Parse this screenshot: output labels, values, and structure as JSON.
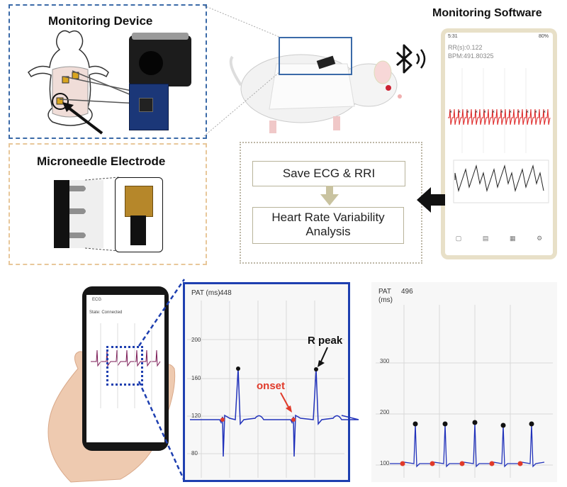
{
  "device_panel": {
    "title": "Monitoring Device"
  },
  "electrode_panel": {
    "title": "Microneedle Electrode"
  },
  "software_panel": {
    "title": "Monitoring Software"
  },
  "bluetooth": {
    "icon": "bluetooth-icon"
  },
  "flow": {
    "step1": "Save ECG & RRI",
    "step2_line1": "Heart Rate Variability",
    "step2_line2": "Analysis"
  },
  "software_phone": {
    "status_time": "5:31",
    "status_right": "80%",
    "line1": "RR(s):0.122",
    "line2": "BPM:491.80325"
  },
  "handheld_phone": {
    "app_name": "ECG",
    "status_line": "State: Connected"
  },
  "zoom_chart": {
    "pat_label": "PAT (ms)",
    "pat_value": "448",
    "y_ticks": [
      "200",
      "160",
      "120",
      "80"
    ],
    "r_peak_label": "R peak",
    "onset_label": "onset"
  },
  "right_chart": {
    "pat_label_line1": "PAT",
    "pat_label_line2": "(ms)",
    "pat_value": "496",
    "y_ticks": [
      "300",
      "200",
      "100"
    ]
  },
  "colors": {
    "blue_frame": "#1e3fb0",
    "ecg_blue": "#2233bb",
    "onset_red": "#e03a2a",
    "flow_arrow": "#c9c3a0"
  }
}
